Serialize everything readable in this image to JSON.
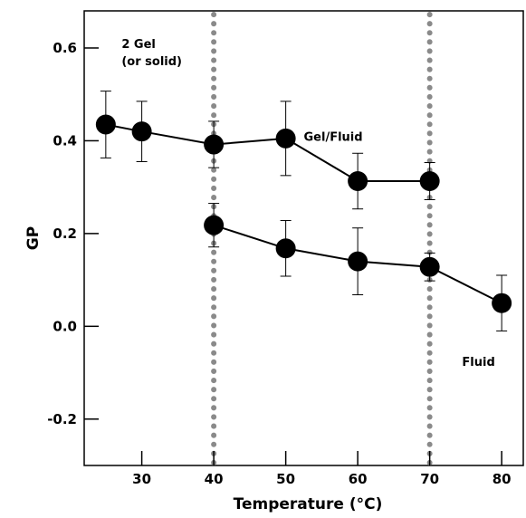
{
  "chart_data": {
    "type": "scatter",
    "xlabel": "Temperature (°C)",
    "ylabel": "GP",
    "xlim": [
      22,
      83
    ],
    "ylim": [
      -0.3,
      0.68
    ],
    "xticks": [
      30,
      40,
      50,
      60,
      70,
      80
    ],
    "yticks": [
      -0.2,
      0.0,
      0.2,
      0.4,
      0.6
    ],
    "ytick_labels": [
      "-0.2",
      "0.0",
      "0.2",
      "0.4",
      "0.6"
    ],
    "grid": false,
    "reference_lines": [
      {
        "x": 40,
        "style": "dotted"
      },
      {
        "x": 70,
        "style": "dotted"
      }
    ],
    "series": [
      {
        "x": [
          25,
          30,
          40,
          50,
          60,
          70
        ],
        "y": [
          0.435,
          0.42,
          0.392,
          0.405,
          0.313,
          0.313
        ],
        "err": [
          0.072,
          0.065,
          0.05,
          0.08,
          0.06,
          0.04
        ]
      },
      {
        "x": [
          40,
          50,
          60,
          70,
          80
        ],
        "y": [
          0.218,
          0.168,
          0.14,
          0.128,
          0.05
        ],
        "err": [
          0.047,
          0.06,
          0.072,
          0.03,
          0.06
        ]
      }
    ],
    "annotations": [
      {
        "lines": [
          "2 Gel",
          "(or solid)"
        ],
        "x": 27.2,
        "y": 0.6
      },
      {
        "lines": [
          "Gel/Fluid"
        ],
        "x": 52.5,
        "y": 0.4
      },
      {
        "lines": [
          "Fluid"
        ],
        "x": 74.5,
        "y": -0.085
      }
    ]
  }
}
